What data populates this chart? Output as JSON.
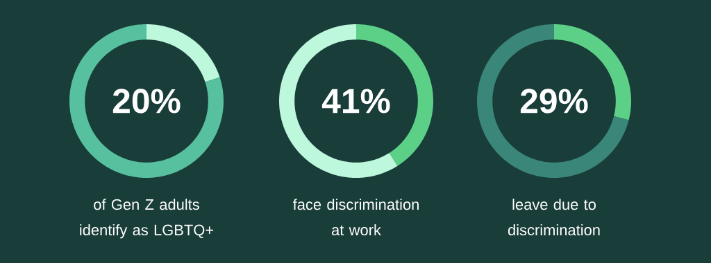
{
  "chart_data": [
    {
      "type": "donut",
      "categories": [
        null,
        null
      ],
      "values": [
        20,
        80
      ],
      "colors": [
        "#bdf7dc",
        "#57c19f"
      ],
      "annotations": [
        "20%",
        "of Gen Z adults identify as LGBTQ+"
      ]
    },
    {
      "type": "donut",
      "categories": [
        null,
        null
      ],
      "values": [
        41,
        59
      ],
      "colors": [
        "#5dd088",
        "#bdf7dc"
      ],
      "annotations": [
        "41%",
        "face discrimination at work"
      ]
    },
    {
      "type": "donut",
      "categories": [
        null,
        null
      ],
      "values": [
        29,
        71
      ],
      "colors": [
        "#5dd088",
        "#3a877a"
      ],
      "annotations": [
        "29%",
        "leave due to discrimination"
      ]
    }
  ]
}
